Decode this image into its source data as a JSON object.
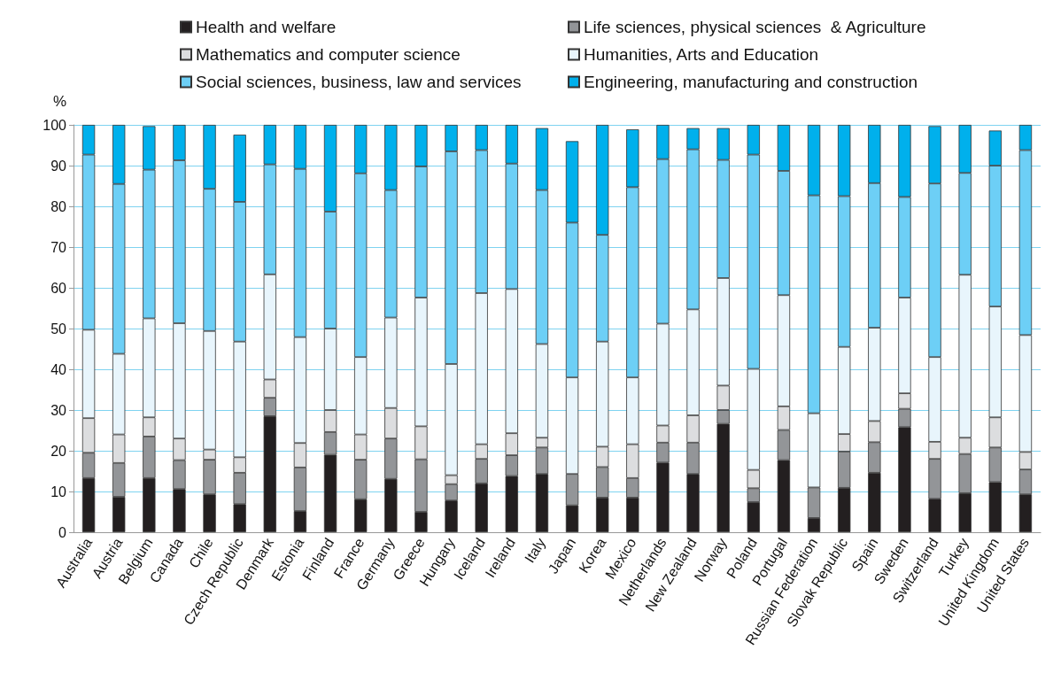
{
  "chart_data": {
    "type": "bar",
    "stacked": true,
    "ylabel": "%",
    "ylim": [
      0,
      100
    ],
    "yticks": [
      0,
      10,
      20,
      30,
      40,
      50,
      60,
      70,
      80,
      90,
      100
    ],
    "grid": "y",
    "legend": "top",
    "categories": [
      "Australia",
      "Austria",
      "Belgium",
      "Canada",
      "Chile",
      "Czech Republic",
      "Denmark",
      "Estonia",
      "Finland",
      "France",
      "Germany",
      "Greece",
      "Hungary",
      "Iceland",
      "Ireland",
      "Italy",
      "Japan",
      "Korea",
      "Mexico",
      "Netherlands",
      "New Zealand",
      "Norway",
      "Poland",
      "Portugal",
      "Russian Federation",
      "Slovak Republic",
      "Spain",
      "Sweden",
      "Switzerland",
      "Turkey",
      "United Kingdom",
      "United States"
    ],
    "series": [
      {
        "name": "Health and welfare",
        "color": "#231f20",
        "values": [
          13.3,
          8.7,
          13.3,
          10.6,
          9.3,
          6.9,
          28.5,
          5.2,
          19.0,
          8.1,
          13.1,
          5.0,
          7.8,
          12.0,
          13.8,
          14.3,
          6.6,
          8.5,
          8.5,
          17.1,
          14.3,
          26.6,
          7.4,
          17.7,
          3.5,
          10.9,
          14.6,
          25.8,
          8.2,
          9.6,
          12.3,
          9.3
        ]
      },
      {
        "name": "Life sciences, physical sciences  & Agriculture",
        "color": "#939598",
        "values": [
          6.2,
          8.3,
          10.2,
          7.1,
          8.5,
          7.7,
          4.5,
          10.7,
          5.6,
          9.7,
          9.9,
          12.9,
          4.0,
          6.0,
          5.1,
          6.5,
          7.7,
          7.5,
          4.8,
          4.9,
          7.7,
          3.4,
          3.4,
          7.4,
          7.5,
          8.9,
          7.5,
          4.5,
          9.8,
          9.6,
          8.5,
          6.1
        ]
      },
      {
        "name": "Mathematics and computer science",
        "color": "#dcdddf",
        "values": [
          8.5,
          7.0,
          4.7,
          5.3,
          2.5,
          3.8,
          4.5,
          6.0,
          5.4,
          6.2,
          7.5,
          8.1,
          2.2,
          3.6,
          5.4,
          2.4,
          0,
          5.0,
          8.3,
          4.2,
          6.7,
          6.0,
          4.5,
          5.8,
          0,
          4.3,
          5.2,
          3.8,
          4.2,
          4.0,
          7.4,
          4.3
        ]
      },
      {
        "name": "Humanities, Arts and Education",
        "color": "#e8f5fc",
        "values": [
          21.7,
          19.8,
          24.3,
          28.3,
          29.1,
          28.4,
          25.8,
          26.0,
          20.0,
          19.0,
          22.2,
          31.6,
          27.3,
          37.1,
          35.4,
          23.0,
          23.7,
          25.8,
          16.4,
          25.0,
          26.0,
          26.4,
          24.8,
          27.3,
          18.2,
          21.4,
          22.9,
          23.5,
          20.8,
          40.0,
          27.2,
          28.7
        ]
      },
      {
        "name": "Social sciences, business, law and services",
        "color": "#6dcff6",
        "values": [
          43.0,
          41.7,
          36.5,
          40.0,
          34.9,
          34.3,
          27.0,
          41.3,
          28.7,
          45.1,
          31.3,
          32.2,
          52.2,
          35.1,
          30.8,
          37.8,
          38.0,
          26.2,
          46.7,
          40.4,
          39.3,
          29.0,
          52.6,
          30.5,
          53.5,
          37.0,
          35.5,
          24.7,
          42.6,
          25.0,
          34.6,
          45.4
        ]
      },
      {
        "name": "Engineering, manufacturing and construction",
        "color": "#00b0ec",
        "values": [
          7.3,
          14.5,
          10.7,
          8.7,
          15.7,
          16.5,
          9.7,
          10.8,
          21.3,
          11.9,
          16.0,
          10.2,
          6.5,
          6.2,
          9.5,
          15.2,
          20.0,
          27.0,
          14.2,
          8.4,
          5.2,
          7.8,
          7.3,
          11.3,
          17.3,
          17.5,
          14.3,
          17.7,
          14.1,
          11.8,
          8.6,
          6.2
        ]
      }
    ]
  }
}
